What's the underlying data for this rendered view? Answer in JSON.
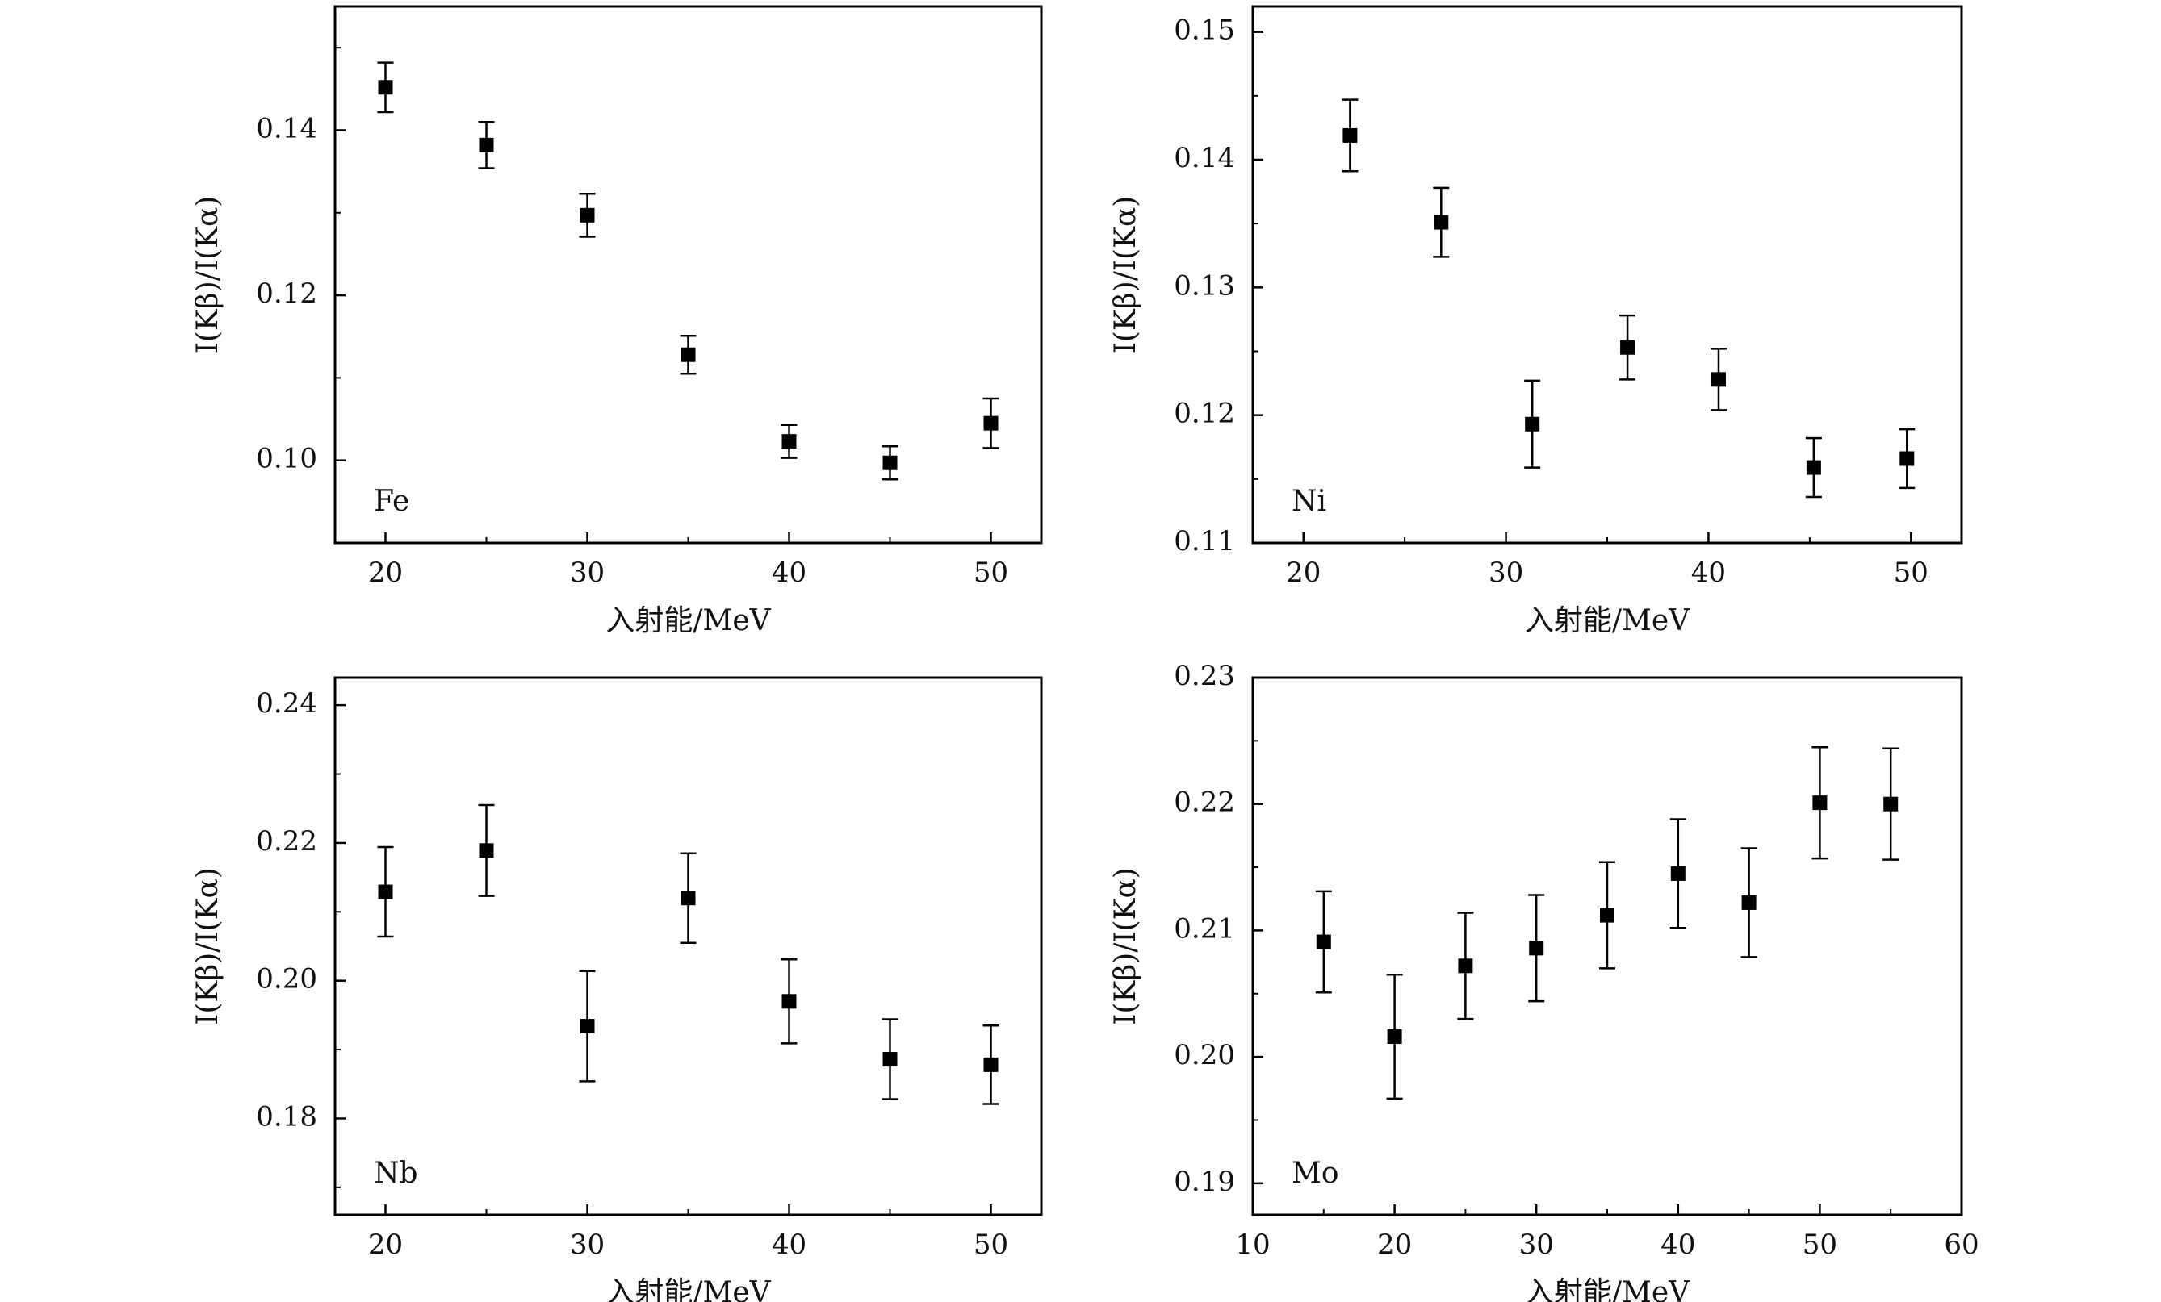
{
  "chart_data": [
    {
      "type": "scatter",
      "panel_label": "Fe",
      "xlabel": "入射能/MeV",
      "ylabel": "I(Kβ)/I(Kα)",
      "xlim": [
        17.5,
        52.5
      ],
      "ylim": [
        0.09,
        0.155
      ],
      "xticks": [
        20,
        30,
        40,
        50
      ],
      "yticks": [
        0.1,
        0.12,
        0.14
      ],
      "xtick_labels": [
        "20",
        "30",
        "40",
        "50"
      ],
      "ytick_labels": [
        "0.10",
        "0.12",
        "0.14"
      ],
      "grid": false,
      "series": [
        {
          "x": [
            20,
            25,
            30,
            35,
            40,
            45,
            50
          ],
          "y": [
            0.1452,
            0.1382,
            0.1297,
            0.1128,
            0.1023,
            0.0997,
            0.1045
          ],
          "err": [
            0.003,
            0.0028,
            0.0026,
            0.0023,
            0.002,
            0.002,
            0.003
          ]
        }
      ]
    },
    {
      "type": "scatter",
      "panel_label": "Ni",
      "xlabel": "入射能/MeV",
      "ylabel": "I(Kβ)/I(Kα)",
      "xlim": [
        17.5,
        52.5
      ],
      "ylim": [
        0.11,
        0.152
      ],
      "xticks": [
        20,
        30,
        40,
        50
      ],
      "yticks": [
        0.11,
        0.12,
        0.13,
        0.14,
        0.15
      ],
      "xtick_labels": [
        "20",
        "30",
        "40",
        "50"
      ],
      "ytick_labels": [
        "0.11",
        "0.12",
        "0.13",
        "0.14",
        "0.15"
      ],
      "grid": false,
      "series": [
        {
          "x": [
            22.3,
            26.8,
            31.3,
            36.0,
            40.5,
            45.2,
            49.8
          ],
          "y": [
            0.1419,
            0.1351,
            0.1193,
            0.1253,
            0.1228,
            0.1159,
            0.1166
          ],
          "err": [
            0.0028,
            0.0027,
            0.0034,
            0.0025,
            0.0024,
            0.0023,
            0.0023
          ]
        }
      ]
    },
    {
      "type": "scatter",
      "panel_label": "Nb",
      "xlabel": "入射能/MeV",
      "ylabel": "I(Kβ)/I(Kα)",
      "xlim": [
        17.5,
        52.5
      ],
      "ylim": [
        0.166,
        0.244
      ],
      "xticks": [
        20,
        30,
        40,
        50
      ],
      "yticks": [
        0.18,
        0.2,
        0.22,
        0.24
      ],
      "xtick_labels": [
        "20",
        "30",
        "40",
        "50"
      ],
      "ytick_labels": [
        "0.18",
        "0.20",
        "0.22",
        "0.24"
      ],
      "grid": false,
      "series": [
        {
          "x": [
            20,
            25,
            30,
            35,
            40,
            45,
            50
          ],
          "y": [
            0.2129,
            0.2189,
            0.1934,
            0.212,
            0.197,
            0.1886,
            0.1878
          ],
          "err": [
            0.0065,
            0.0066,
            0.008,
            0.0065,
            0.0061,
            0.0058,
            0.0057
          ]
        }
      ]
    },
    {
      "type": "scatter",
      "panel_label": "Mo",
      "xlabel": "入射能/MeV",
      "ylabel": "I(Kβ)/I(Kα)",
      "xlim": [
        10,
        60
      ],
      "ylim": [
        0.1875,
        0.23
      ],
      "xticks": [
        10,
        20,
        30,
        40,
        50,
        60
      ],
      "yticks": [
        0.19,
        0.2,
        0.21,
        0.22,
        0.23
      ],
      "xtick_labels": [
        "10",
        "20",
        "30",
        "40",
        "50",
        "60"
      ],
      "ytick_labels": [
        "0.19",
        "0.20",
        "0.21",
        "0.22",
        "0.23"
      ],
      "grid": false,
      "series": [
        {
          "x": [
            15,
            20,
            25,
            30,
            35,
            40,
            45,
            50,
            55
          ],
          "y": [
            0.2091,
            0.2016,
            0.2072,
            0.2086,
            0.2112,
            0.2145,
            0.2122,
            0.2201,
            0.22
          ],
          "err": [
            0.004,
            0.0049,
            0.0042,
            0.0042,
            0.0042,
            0.0043,
            0.0043,
            0.0044,
            0.0044
          ]
        }
      ]
    }
  ]
}
